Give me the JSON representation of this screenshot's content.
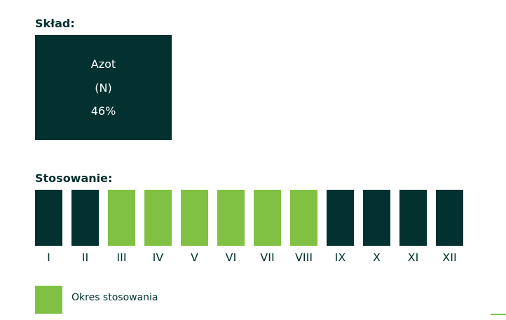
{
  "composition": {
    "title": "Skład:",
    "element": "Azot",
    "symbol": "(N)",
    "content": "46%"
  },
  "usage": {
    "title": "Stosowanie:",
    "active_color": "#80c143",
    "inactive_color": "#02312f",
    "months": [
      {
        "label": "I",
        "active": false
      },
      {
        "label": "II",
        "active": false
      },
      {
        "label": "III",
        "active": true
      },
      {
        "label": "IV",
        "active": true
      },
      {
        "label": "V",
        "active": true
      },
      {
        "label": "VI",
        "active": true
      },
      {
        "label": "VII",
        "active": true
      },
      {
        "label": "VIII",
        "active": true
      },
      {
        "label": "IX",
        "active": false
      },
      {
        "label": "X",
        "active": false
      },
      {
        "label": "XI",
        "active": false
      },
      {
        "label": "XII",
        "active": false
      }
    ],
    "legend": "Okres stosowania"
  }
}
